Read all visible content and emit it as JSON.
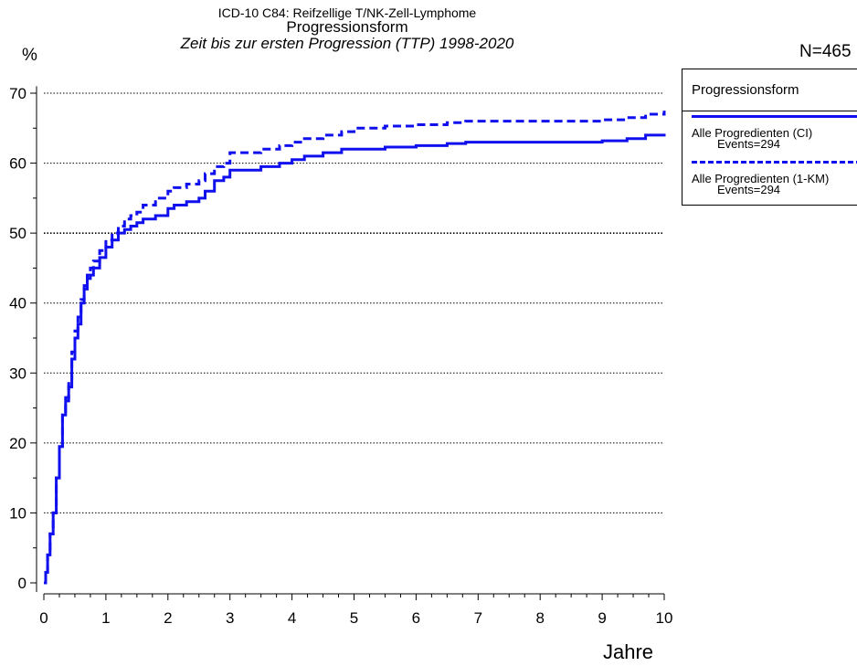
{
  "chart_data": {
    "type": "line",
    "title": "ICD-10 C84: Reifzellige T/NK-Zell-Lymphome",
    "subtitle": "Progressionsform",
    "subtitle2": "Zeit bis zur ersten Progression (TTP) 1998-2020",
    "n_label": "N=465",
    "ylabel": "%",
    "xlabel": "Jahre",
    "xlim": [
      0,
      10
    ],
    "ylim": [
      0,
      72
    ],
    "x_ticks": [
      0,
      1,
      2,
      3,
      4,
      5,
      6,
      7,
      8,
      9,
      10
    ],
    "x_tick_labels": [
      "0",
      "1",
      "2",
      "3",
      "4",
      "5",
      "6",
      "7",
      "8",
      "9",
      "10"
    ],
    "y_ticks": [
      0,
      10,
      20,
      30,
      40,
      50,
      60,
      70
    ],
    "y_tick_labels": [
      "0",
      "10",
      "20",
      "30",
      "40",
      "50",
      "60",
      "70"
    ],
    "grid": "horizontal dotted",
    "legend_placement": "right",
    "legend_title": "Progressionsform",
    "series": [
      {
        "name": "Alle Progredienten (CI)",
        "events": "Events=294",
        "style": "solid",
        "color": "#1010ee",
        "x": [
          0,
          0.03,
          0.06,
          0.1,
          0.15,
          0.2,
          0.25,
          0.3,
          0.35,
          0.4,
          0.45,
          0.5,
          0.55,
          0.6,
          0.65,
          0.7,
          0.75,
          0.8,
          0.9,
          1.0,
          1.1,
          1.2,
          1.3,
          1.4,
          1.5,
          1.6,
          1.8,
          2.0,
          2.1,
          2.3,
          2.5,
          2.6,
          2.75,
          2.9,
          3.0,
          3.2,
          3.5,
          3.8,
          4.0,
          4.2,
          4.5,
          4.8,
          5.0,
          5.5,
          6.0,
          6.5,
          6.8,
          7.5,
          8.0,
          8.5,
          9.0,
          9.4,
          9.7,
          10.0
        ],
        "values": [
          0,
          1.5,
          4,
          7,
          10,
          15,
          19.5,
          24,
          26,
          28,
          32,
          35,
          37,
          40,
          42,
          43.5,
          44,
          45,
          46.5,
          48,
          49,
          50,
          50.5,
          51,
          51.5,
          52,
          52.5,
          53.5,
          54,
          54.5,
          55,
          56,
          57.5,
          58,
          59,
          59,
          59.5,
          60,
          60.5,
          61,
          61.5,
          62,
          62,
          62.3,
          62.5,
          62.8,
          63,
          63,
          63,
          63,
          63.2,
          63.5,
          64,
          64.2
        ]
      },
      {
        "name": "Alle Progredienten (1-KM)",
        "events": "Events=294",
        "style": "dashed",
        "color": "#1010ee",
        "x": [
          0,
          0.03,
          0.06,
          0.1,
          0.15,
          0.2,
          0.25,
          0.3,
          0.35,
          0.4,
          0.45,
          0.5,
          0.55,
          0.6,
          0.65,
          0.7,
          0.75,
          0.8,
          0.9,
          1.0,
          1.1,
          1.2,
          1.3,
          1.4,
          1.5,
          1.6,
          1.8,
          2.0,
          2.1,
          2.3,
          2.5,
          2.6,
          2.75,
          2.9,
          3.0,
          3.2,
          3.5,
          3.8,
          4.0,
          4.2,
          4.5,
          4.8,
          5.0,
          5.5,
          6.0,
          6.5,
          6.8,
          7.5,
          8.0,
          8.5,
          9.0,
          9.4,
          9.7,
          10.0
        ],
        "values": [
          0,
          1.5,
          4,
          7,
          10,
          15,
          19.5,
          24,
          26.5,
          28.5,
          33,
          36,
          38,
          40.5,
          42.5,
          44,
          45,
          46,
          47.5,
          49,
          50,
          51,
          52,
          52.5,
          53,
          54,
          55,
          56,
          56.5,
          57,
          57.5,
          58.5,
          59.5,
          60,
          61.5,
          61.5,
          62,
          62.5,
          63,
          63.5,
          64,
          64.5,
          65,
          65.3,
          65.5,
          65.8,
          66,
          66,
          66,
          66,
          66.2,
          66.5,
          67,
          67.5
        ]
      }
    ]
  }
}
